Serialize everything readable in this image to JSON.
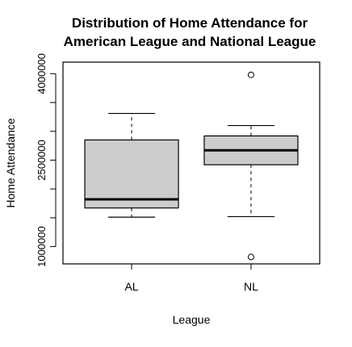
{
  "chart_data": {
    "type": "boxplot",
    "title_lines": [
      "Distribution of Home Attendance for",
      "American League and National League"
    ],
    "xlabel": "League",
    "ylabel": "Home Attendance",
    "ylim": [
      700000,
      4200000
    ],
    "y_tick_values": [
      1000000,
      1500000,
      2000000,
      2500000,
      3000000,
      3500000,
      4000000
    ],
    "y_tick_labels": [
      "1000000",
      "2500000",
      "4000000"
    ],
    "y_tick_label_values": [
      1000000,
      2500000,
      4000000
    ],
    "categories": [
      "AL",
      "NL"
    ],
    "series": [
      {
        "name": "AL",
        "whisker_low": 1510000,
        "q1": 1670000,
        "median": 1820000,
        "q3": 2850000,
        "whisker_high": 3310000,
        "outliers": []
      },
      {
        "name": "NL",
        "whisker_low": 1520000,
        "q1": 2420000,
        "median": 2670000,
        "q3": 2920000,
        "whisker_high": 3100000,
        "outliers": [
          3980000,
          820000
        ]
      }
    ],
    "box_fill": "#cccccc",
    "grid": false
  }
}
